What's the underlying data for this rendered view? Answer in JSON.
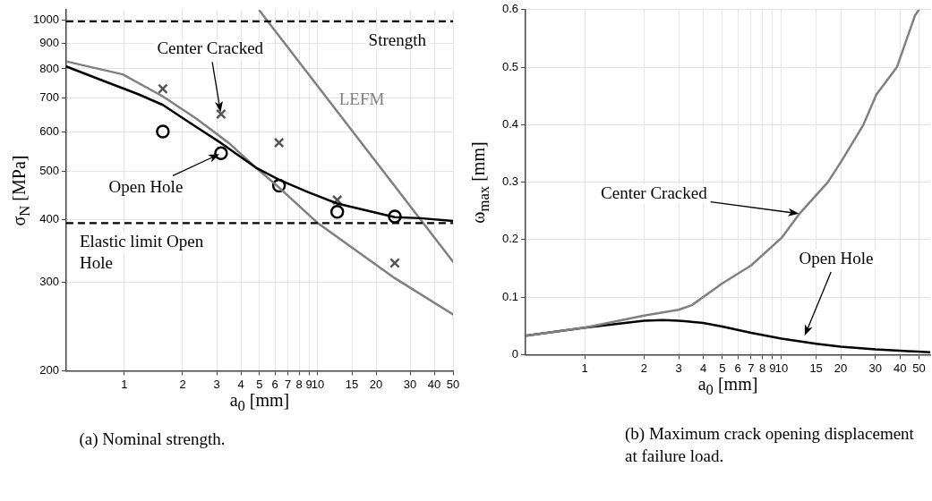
{
  "chart_data": [
    {
      "type": "line",
      "xlabel": "a$_{0}$ [mm]",
      "ylabel": "σ$_{N}$ [MPa]",
      "log": "xy",
      "grid": true,
      "xlim": [
        0.5,
        50
      ],
      "ylim": [
        200,
        1050
      ],
      "xticks": [
        1,
        2,
        3,
        4,
        5,
        6,
        7,
        8,
        9,
        10,
        15,
        20,
        30,
        40,
        50
      ],
      "yticks": [
        200,
        300,
        400,
        500,
        600,
        700,
        800,
        900,
        1000
      ],
      "series": [
        {
          "type": "line",
          "color": "#000000",
          "x": [
            0.5,
            0.69,
            1.17,
            1.58,
            2.27,
            3.16,
            4.76,
            6.3,
            8.93,
            12.6,
            25,
            33.9,
            50
          ],
          "values": [
            809,
            771,
            713,
            678,
            618,
            569,
            509,
            481,
            454,
            431,
            405,
            403,
            398
          ]
        },
        {
          "type": "line",
          "color": "#808080",
          "x": [
            0.5,
            0.98,
            1.58,
            2.36,
            3.47,
            4.76,
            6.3,
            10,
            25,
            50
          ],
          "values": [
            828,
            780,
            705,
            636,
            569,
            509,
            464,
            394,
            306,
            259
          ]
        },
        {
          "name": "LEFM",
          "type": "line",
          "color": "#808080",
          "x": [
            5,
            50
          ],
          "values": [
            1045,
            330
          ]
        },
        {
          "type": "scatter",
          "marker": "circle",
          "color": "#000000",
          "x": [
            1.58,
            3.16,
            6.3,
            12.6,
            25
          ],
          "values": [
            600,
            543,
            468,
            415,
            406
          ]
        },
        {
          "type": "scatter",
          "marker": "cross",
          "color": "#555555",
          "x": [
            1.58,
            3.16,
            6.3,
            12.6,
            25
          ],
          "values": [
            730,
            650,
            570,
            438,
            328
          ]
        }
      ],
      "ref_lines": [
        {
          "axis": "y",
          "value": 995,
          "label": "Strength",
          "line_style": "dashed",
          "color": "#000000"
        },
        {
          "axis": "y",
          "value": 394,
          "label": "Elastic limit Open Hole",
          "line_style": "dashed",
          "color": "#000000"
        }
      ],
      "annotations": [
        "Center Cracked",
        {
          "text": "Open Hole",
          "x": 3.16,
          "y": 543
        },
        "(a) Nominal strength."
      ]
    },
    {
      "type": "line",
      "xlabel": "a$_{0}$ [mm]",
      "ylabel": "ω$_{max}$ [mm]",
      "log": "x",
      "grid": true,
      "xlim": [
        0.5,
        57
      ],
      "ylim": [
        0,
        0.6
      ],
      "xticks": [
        1,
        2,
        3,
        4,
        5,
        6,
        7,
        8,
        9,
        10,
        15,
        20,
        30,
        40,
        50
      ],
      "yticks": [
        0,
        0.1,
        0.2,
        0.3,
        0.4,
        0.5,
        0.6
      ],
      "series": [
        {
          "type": "line",
          "color": "#808080",
          "x": [
            0.5,
            1,
            2,
            3,
            3.5,
            5,
            7,
            10,
            12.4,
            17.2,
            20.2,
            26.1,
            30.3,
            38.6,
            47.7,
            50
          ],
          "values": [
            0.033,
            0.047,
            0.068,
            0.078,
            0.086,
            0.124,
            0.155,
            0.203,
            0.246,
            0.3,
            0.337,
            0.4,
            0.452,
            0.5,
            0.59,
            0.6
          ]
        },
        {
          "type": "line",
          "color": "#000000",
          "x": [
            0.5,
            1,
            2,
            2.5,
            3,
            4,
            5,
            7,
            10,
            15,
            20,
            30,
            40,
            57
          ],
          "values": [
            0.033,
            0.047,
            0.059,
            0.06,
            0.059,
            0.055,
            0.049,
            0.038,
            0.028,
            0.019,
            0.014,
            0.009,
            0.007,
            0.004
          ]
        }
      ],
      "annotations": [
        "Center Cracked",
        "Open Hole",
        "(b) Maximum crack opening displacement at failure load."
      ]
    }
  ]
}
